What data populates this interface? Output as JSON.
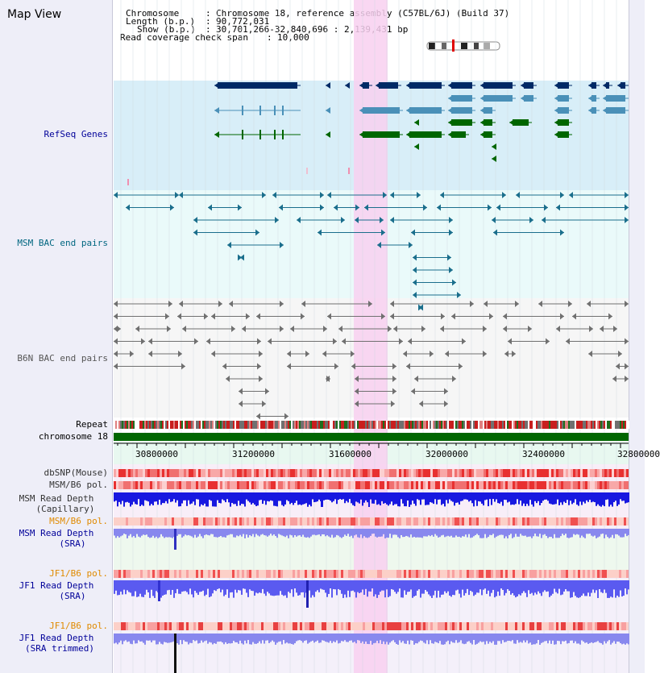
{
  "title": "Map View",
  "header": {
    "chromosome_key": "Chromosome",
    "chromosome_val": "Chromosome 18, reference assembly (C57BL/6J) (Build 37)",
    "length_key": "Length (b.p.)",
    "length_val": "90,772,031",
    "show_key": "Show (b.p.)",
    "show_val": "30,701,266-32,840,696 : 2,139,431 bp",
    "span_key": "Read coverage check span",
    "span_val": "10,000"
  },
  "tracks": {
    "refseq": "RefSeq Genes",
    "msm_bac": "MSM BAC end pairs",
    "b6n_bac": "B6N BAC end pairs",
    "repeat": "Repeat",
    "chromosome": "chromosome 18",
    "dbsnp": "dbSNP(Mouse)",
    "msm_b6_pol": "MSM/B6 pol.",
    "msm_depth_cap_1": "MSM Read Depth",
    "msm_depth_cap_2": "(Capillary)",
    "msm_b6_pol_2": "MSM/B6 pol.",
    "msm_depth_sra_1": "MSM Read Depth",
    "msm_depth_sra_2": "(SRA)",
    "jf1_b6_pol": "JF1/B6 pol.",
    "jf1_depth_sra_1": "JF1 Read Depth",
    "jf1_depth_sra_2": "(SRA)",
    "jf1_b6_pol_2": "JF1/B6 pol.",
    "jf1_depth_trim_1": "JF1 Read Depth",
    "jf1_depth_trim_2": "(SRA trimmed)"
  },
  "axis": {
    "ticks": [
      "30800000",
      "31200000",
      "31600000",
      "32000000",
      "32400000",
      "32800000"
    ]
  },
  "colors": {
    "refseq_dark": "#002a66",
    "refseq_mid": "#4a90b8",
    "refseq_green": "#006600",
    "msm_bac": "#1a6e8c",
    "b6n_bac": "#707070",
    "highlight": "#f8d0f0",
    "label_blue": "#000099",
    "label_orange": "#e08a00",
    "label_teal": "#006680"
  }
}
